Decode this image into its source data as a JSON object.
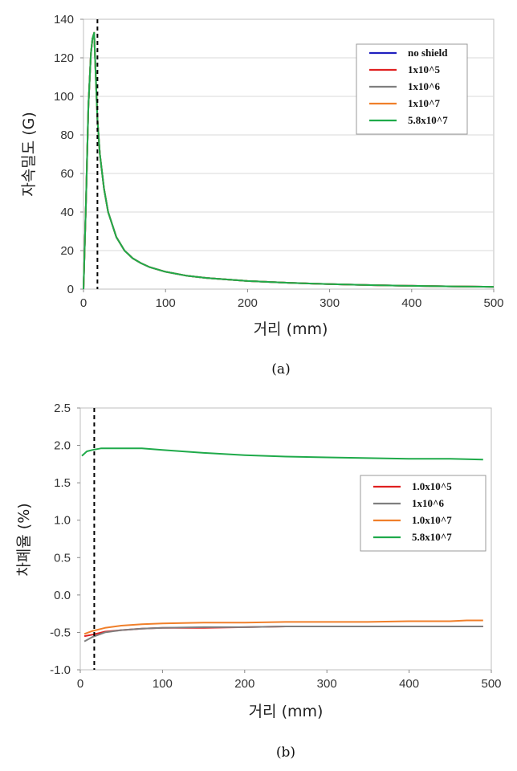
{
  "chart_data": [
    {
      "type": "line",
      "caption": "(a)",
      "xlabel": "거리 (mm)",
      "ylabel": "자속밀도 (G)",
      "xlim": [
        0,
        500
      ],
      "ylim": [
        0,
        140
      ],
      "xticks": [
        "0",
        "100",
        "200",
        "300",
        "400",
        "500"
      ],
      "yticks": [
        "0",
        "20",
        "40",
        "60",
        "80",
        "100",
        "120",
        "140"
      ],
      "grid": true,
      "legend_position": "top-right",
      "marker_line_x": 17,
      "series": [
        {
          "name": "no shield",
          "color": "#1f1fbf",
          "points": [
            [
              0,
              0
            ],
            [
              3,
              45
            ],
            [
              6,
              95
            ],
            [
              9,
              122
            ],
            [
              11,
              130
            ],
            [
              13,
              133
            ],
            [
              15,
              110
            ],
            [
              17,
              88
            ],
            [
              20,
              70
            ],
            [
              25,
              52
            ],
            [
              30,
              40
            ],
            [
              40,
              27
            ],
            [
              50,
              20
            ],
            [
              60,
              16
            ],
            [
              70,
              13.5
            ],
            [
              80,
              11.5
            ],
            [
              100,
              9
            ],
            [
              125,
              7
            ],
            [
              150,
              5.8
            ],
            [
              200,
              4.2
            ],
            [
              250,
              3.3
            ],
            [
              300,
              2.6
            ],
            [
              350,
              2.1
            ],
            [
              400,
              1.7
            ],
            [
              450,
              1.4
            ],
            [
              500,
              1.2
            ]
          ]
        },
        {
          "name": "1x10^5",
          "color": "#e02020",
          "points": [
            [
              0,
              0
            ],
            [
              3,
              45
            ],
            [
              6,
              95
            ],
            [
              9,
              122
            ],
            [
              11,
              130
            ],
            [
              13,
              133
            ],
            [
              15,
              110
            ],
            [
              17,
              88
            ],
            [
              20,
              70
            ],
            [
              25,
              52
            ],
            [
              30,
              40
            ],
            [
              40,
              27
            ],
            [
              50,
              20
            ],
            [
              60,
              16
            ],
            [
              70,
              13.5
            ],
            [
              80,
              11.5
            ],
            [
              100,
              9
            ],
            [
              125,
              7
            ],
            [
              150,
              5.8
            ],
            [
              200,
              4.2
            ],
            [
              250,
              3.3
            ],
            [
              300,
              2.6
            ],
            [
              350,
              2.1
            ],
            [
              400,
              1.7
            ],
            [
              450,
              1.4
            ],
            [
              500,
              1.2
            ]
          ]
        },
        {
          "name": "1x10^6",
          "color": "#7f7f7f",
          "points": [
            [
              0,
              0
            ],
            [
              3,
              45
            ],
            [
              6,
              95
            ],
            [
              9,
              122
            ],
            [
              11,
              130
            ],
            [
              13,
              133
            ],
            [
              15,
              110
            ],
            [
              17,
              88
            ],
            [
              20,
              70
            ],
            [
              25,
              52
            ],
            [
              30,
              40
            ],
            [
              40,
              27
            ],
            [
              50,
              20
            ],
            [
              60,
              16
            ],
            [
              70,
              13.5
            ],
            [
              80,
              11.5
            ],
            [
              100,
              9
            ],
            [
              125,
              7
            ],
            [
              150,
              5.8
            ],
            [
              200,
              4.2
            ],
            [
              250,
              3.3
            ],
            [
              300,
              2.6
            ],
            [
              350,
              2.1
            ],
            [
              400,
              1.7
            ],
            [
              450,
              1.4
            ],
            [
              500,
              1.2
            ]
          ]
        },
        {
          "name": "1x10^7",
          "color": "#f07f2a",
          "points": [
            [
              0,
              0
            ],
            [
              3,
              45
            ],
            [
              6,
              95
            ],
            [
              9,
              122
            ],
            [
              11,
              130
            ],
            [
              13,
              133
            ],
            [
              15,
              110
            ],
            [
              17,
              88
            ],
            [
              20,
              70
            ],
            [
              25,
              52
            ],
            [
              30,
              40
            ],
            [
              40,
              27
            ],
            [
              50,
              20
            ],
            [
              60,
              16
            ],
            [
              70,
              13.5
            ],
            [
              80,
              11.5
            ],
            [
              100,
              9
            ],
            [
              125,
              7
            ],
            [
              150,
              5.8
            ],
            [
              200,
              4.2
            ],
            [
              250,
              3.3
            ],
            [
              300,
              2.6
            ],
            [
              350,
              2.1
            ],
            [
              400,
              1.7
            ],
            [
              450,
              1.4
            ],
            [
              500,
              1.2
            ]
          ]
        },
        {
          "name": "5.8x10^7",
          "color": "#1faa4a",
          "points": [
            [
              0,
              0
            ],
            [
              3,
              45
            ],
            [
              6,
              95
            ],
            [
              9,
              122
            ],
            [
              11,
              130
            ],
            [
              13,
              133
            ],
            [
              15,
              110
            ],
            [
              17,
              88
            ],
            [
              20,
              70
            ],
            [
              25,
              52
            ],
            [
              30,
              40
            ],
            [
              40,
              27
            ],
            [
              50,
              20
            ],
            [
              60,
              16
            ],
            [
              70,
              13.5
            ],
            [
              80,
              11.5
            ],
            [
              100,
              9
            ],
            [
              125,
              7
            ],
            [
              150,
              5.8
            ],
            [
              200,
              4.2
            ],
            [
              250,
              3.3
            ],
            [
              300,
              2.6
            ],
            [
              350,
              2.1
            ],
            [
              400,
              1.7
            ],
            [
              450,
              1.4
            ],
            [
              500,
              1.2
            ]
          ]
        }
      ]
    },
    {
      "type": "line",
      "caption": "(b)",
      "xlabel": "거리 (mm)",
      "ylabel": "차폐율 (%)",
      "xlim": [
        0,
        500
      ],
      "ylim": [
        -1.0,
        2.5
      ],
      "xticks": [
        "0",
        "100",
        "200",
        "300",
        "400",
        "500"
      ],
      "yticks": [
        "-1.0",
        "-0.5",
        "0.0",
        "0.5",
        "1.0",
        "1.5",
        "2.0",
        "2.5"
      ],
      "grid": false,
      "legend_position": "right",
      "marker_line_x": 17,
      "series": [
        {
          "name": "1.0x10^5",
          "color": "#e02020",
          "points": [
            [
              5,
              -0.55
            ],
            [
              15,
              -0.53
            ],
            [
              30,
              -0.49
            ],
            [
              50,
              -0.47
            ],
            [
              75,
              -0.45
            ],
            [
              100,
              -0.44
            ],
            [
              150,
              -0.44
            ],
            [
              200,
              -0.43
            ],
            [
              250,
              -0.42
            ],
            [
              300,
              -0.42
            ],
            [
              350,
              -0.42
            ],
            [
              400,
              -0.42
            ],
            [
              450,
              -0.42
            ],
            [
              490,
              -0.42
            ]
          ]
        },
        {
          "name": "1x10^6",
          "color": "#7f7f7f",
          "points": [
            [
              5,
              -0.62
            ],
            [
              15,
              -0.56
            ],
            [
              30,
              -0.5
            ],
            [
              50,
              -0.47
            ],
            [
              75,
              -0.45
            ],
            [
              100,
              -0.44
            ],
            [
              150,
              -0.43
            ],
            [
              200,
              -0.43
            ],
            [
              250,
              -0.42
            ],
            [
              300,
              -0.42
            ],
            [
              350,
              -0.42
            ],
            [
              400,
              -0.42
            ],
            [
              450,
              -0.42
            ],
            [
              490,
              -0.42
            ]
          ]
        },
        {
          "name": "1.0x10^7",
          "color": "#f07f2a",
          "points": [
            [
              5,
              -0.52
            ],
            [
              15,
              -0.48
            ],
            [
              30,
              -0.44
            ],
            [
              50,
              -0.41
            ],
            [
              75,
              -0.39
            ],
            [
              100,
              -0.38
            ],
            [
              150,
              -0.37
            ],
            [
              200,
              -0.37
            ],
            [
              250,
              -0.36
            ],
            [
              300,
              -0.36
            ],
            [
              350,
              -0.36
            ],
            [
              400,
              -0.35
            ],
            [
              450,
              -0.35
            ],
            [
              470,
              -0.34
            ],
            [
              490,
              -0.34
            ]
          ]
        },
        {
          "name": "5.8x10^7",
          "color": "#1faa4a",
          "points": [
            [
              2,
              1.86
            ],
            [
              8,
              1.92
            ],
            [
              15,
              1.94
            ],
            [
              25,
              1.96
            ],
            [
              50,
              1.96
            ],
            [
              75,
              1.96
            ],
            [
              100,
              1.94
            ],
            [
              150,
              1.9
            ],
            [
              200,
              1.87
            ],
            [
              250,
              1.85
            ],
            [
              300,
              1.84
            ],
            [
              350,
              1.83
            ],
            [
              400,
              1.82
            ],
            [
              450,
              1.82
            ],
            [
              490,
              1.81
            ]
          ]
        }
      ]
    }
  ]
}
